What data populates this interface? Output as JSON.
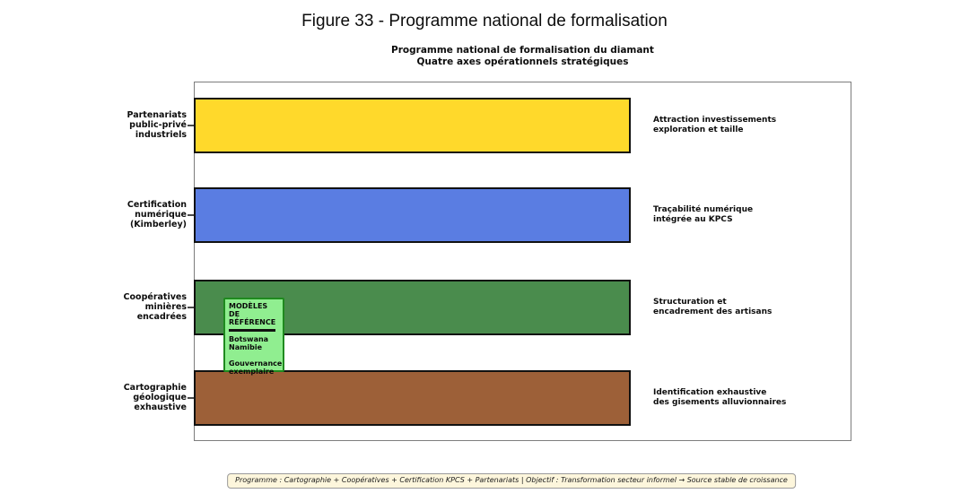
{
  "figure_title": "Figure 33 - Programme national de formalisation",
  "chart_data": {
    "type": "bar",
    "orientation": "horizontal",
    "title_line1": "Programme national de formalisation du diamant",
    "title_line2": "Quatre axes opérationnels stratégiques",
    "categories": [
      "Partenariats public-privé industriels",
      "Certification numérique (Kimberley)",
      "Coopératives minières encadrées",
      "Cartographie géologique exhaustive"
    ],
    "values": [
      10,
      10,
      10,
      10
    ],
    "xlim": [
      0,
      15
    ],
    "grid": false,
    "legend": "none",
    "xlabel": "",
    "ylabel": "",
    "bars": [
      {
        "label_lines": [
          "Partenariats",
          "public-privé",
          "industriels"
        ],
        "annotation_lines": [
          "Attraction investissements",
          "exploration et taille"
        ],
        "color": "#ffd92b"
      },
      {
        "label_lines": [
          "Certification",
          "numérique",
          "(Kimberley)"
        ],
        "annotation_lines": [
          "Traçabilité numérique",
          "intégrée au KPCS"
        ],
        "color": "#5a7de2"
      },
      {
        "label_lines": [
          "Coopératives",
          "minières",
          "encadrées"
        ],
        "annotation_lines": [
          "Structuration et",
          "encadrement des artisans"
        ],
        "color": "#4a8c4d"
      },
      {
        "label_lines": [
          "Cartographie",
          "géologique",
          "exhaustive"
        ],
        "annotation_lines": [
          "Identification exhaustive",
          "des gisements alluvionnaires"
        ],
        "color": "#9d6038"
      }
    ]
  },
  "reference_box": {
    "heading_lines": [
      "MODÈLES DE",
      "RÉFÉRENCE"
    ],
    "country_lines": [
      "Botswana",
      "Namibie"
    ],
    "footer_lines": [
      "Gouvernance",
      "exemplaire"
    ],
    "fill": "#90ee90",
    "border_color": "#1f8a1f"
  },
  "caption": "Programme : Cartographie + Coopératives + Certification KPCS + Partenariats | Objectif : Transformation secteur informel → Source stable de croissance",
  "colors": {
    "bar_border": "#111111",
    "plot_border": "#7d7d7d",
    "caption_bg": "#fdf6dc",
    "caption_border": "#9a9a9a"
  }
}
